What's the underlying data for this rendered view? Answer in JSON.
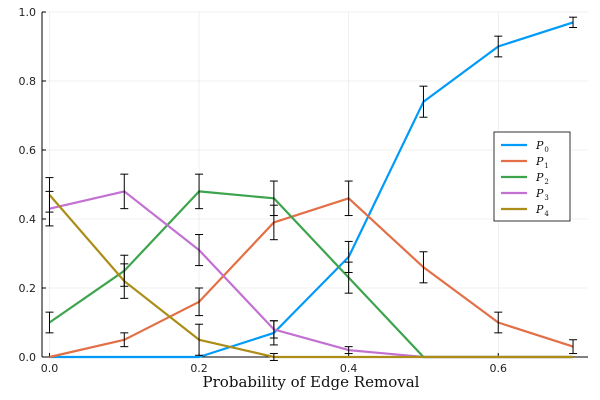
{
  "chart_data": {
    "type": "line",
    "xlabel": "Probability of Edge Removal",
    "ylabel": "",
    "xlim": [
      -0.01,
      0.72
    ],
    "ylim": [
      0.0,
      1.0
    ],
    "x_ticks": [
      0.0,
      0.2,
      0.4,
      0.6
    ],
    "x_tick_labels": [
      "0.0",
      "0.2",
      "0.4",
      "0.6"
    ],
    "y_ticks": [
      0.0,
      0.2,
      0.4,
      0.6,
      0.8,
      1.0
    ],
    "y_tick_labels": [
      "0.0",
      "0.2",
      "0.4",
      "0.6",
      "0.8",
      "1.0"
    ],
    "grid": true,
    "legend_position": "right",
    "x": [
      0.0,
      0.1,
      0.2,
      0.3,
      0.4,
      0.5,
      0.6,
      0.7
    ],
    "series": [
      {
        "name": "P",
        "subscript": "0",
        "color": "#009af9",
        "values": [
          0.0,
          0.0,
          0.0,
          0.07,
          0.29,
          0.74,
          0.9,
          0.97
        ],
        "errors": [
          0.0,
          0.0,
          0.0,
          0.035,
          0.045,
          0.045,
          0.03,
          0.015
        ]
      },
      {
        "name": "P",
        "subscript": "1",
        "color": "#e26f46",
        "values": [
          0.0,
          0.05,
          0.16,
          0.39,
          0.46,
          0.26,
          0.1,
          0.03
        ],
        "errors": [
          0.0,
          0.02,
          0.04,
          0.05,
          0.05,
          0.045,
          0.03,
          0.02
        ]
      },
      {
        "name": "P",
        "subscript": "2",
        "color": "#3da44d",
        "values": [
          0.1,
          0.25,
          0.48,
          0.46,
          0.23,
          0.0,
          0.0,
          0.0
        ],
        "errors": [
          0.03,
          0.045,
          0.05,
          0.05,
          0.045,
          0.0,
          0.0,
          0.0
        ]
      },
      {
        "name": "P",
        "subscript": "3",
        "color": "#c271d2",
        "values": [
          0.43,
          0.48,
          0.31,
          0.08,
          0.02,
          0.0,
          0.0,
          0.0
        ],
        "errors": [
          0.05,
          0.05,
          0.045,
          0.025,
          0.01,
          0.0,
          0.0,
          0.0
        ]
      },
      {
        "name": "P",
        "subscript": "4",
        "color": "#ac8d18",
        "values": [
          0.47,
          0.22,
          0.05,
          0.0,
          0.0,
          0.0,
          0.0,
          0.0
        ],
        "errors": [
          0.05,
          0.05,
          0.045,
          0.01,
          0.0,
          0.0,
          0.0,
          0.0
        ]
      }
    ]
  }
}
